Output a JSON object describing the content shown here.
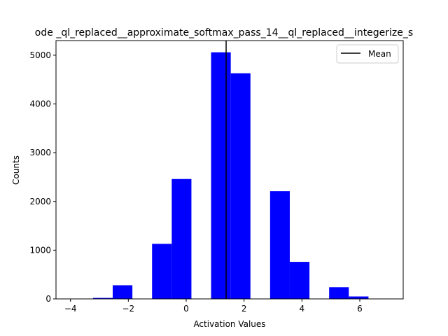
{
  "chart_data": {
    "type": "bar",
    "title": "ode _ql_replaced__approximate_softmax_pass_14__ql_replaced__integerize_s",
    "xlabel": "Activation Values",
    "ylabel": "Counts",
    "xlim": [
      -4.5,
      7.5
    ],
    "ylim": [
      0,
      5300
    ],
    "xticks": [
      -4,
      -2,
      0,
      2,
      4,
      6
    ],
    "yticks": [
      0,
      1000,
      2000,
      3000,
      4000,
      5000
    ],
    "bar_color": "#0000ff",
    "bins": [
      {
        "left": -3.22,
        "right": -2.54,
        "value": 20
      },
      {
        "left": -2.54,
        "right": -1.86,
        "value": 280
      },
      {
        "left": -1.86,
        "right": -1.18,
        "value": 0
      },
      {
        "left": -1.18,
        "right": -0.5,
        "value": 1130
      },
      {
        "left": -0.5,
        "right": 0.18,
        "value": 2460
      },
      {
        "left": 0.18,
        "right": 0.86,
        "value": 0
      },
      {
        "left": 0.86,
        "right": 1.54,
        "value": 5060
      },
      {
        "left": 1.54,
        "right": 2.22,
        "value": 4630
      },
      {
        "left": 2.22,
        "right": 2.9,
        "value": 0
      },
      {
        "left": 2.9,
        "right": 3.58,
        "value": 2210
      },
      {
        "left": 3.58,
        "right": 4.26,
        "value": 760
      },
      {
        "left": 4.26,
        "right": 4.94,
        "value": 0
      },
      {
        "left": 4.94,
        "right": 5.62,
        "value": 240
      },
      {
        "left": 5.62,
        "right": 6.3,
        "value": 50
      }
    ],
    "mean": 1.38,
    "mean_color": "#000000",
    "legend": {
      "position": "top-right",
      "entries": [
        {
          "label": "Mean"
        }
      ]
    },
    "grid": false
  }
}
